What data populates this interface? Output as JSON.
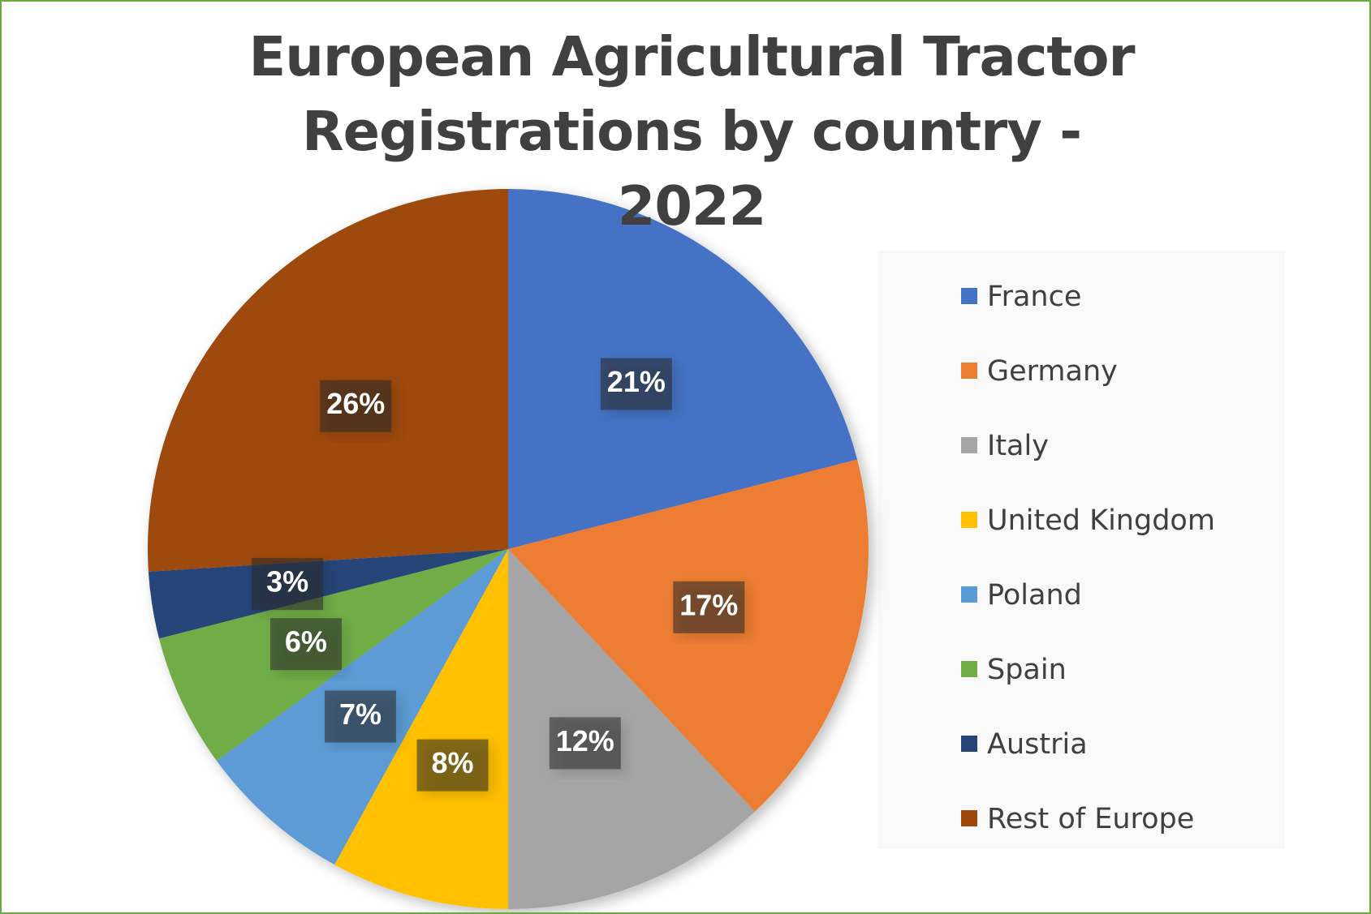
{
  "chart_data": {
    "type": "pie",
    "title": "European Agricultural Tractor Registrations by country - 2022",
    "categories": [
      "France",
      "Germany",
      "Italy",
      "United Kingdom",
      "Poland",
      "Spain",
      "Austria",
      "Rest of Europe"
    ],
    "values": [
      21,
      17,
      12,
      8,
      7,
      6,
      3,
      26
    ],
    "value_labels": [
      "21%",
      "17%",
      "12%",
      "8%",
      "7%",
      "6%",
      "3%",
      "26%"
    ],
    "colors": [
      "#4472c4",
      "#ed7d31",
      "#a5a5a5",
      "#ffc000",
      "#5b9bd5",
      "#70ad47",
      "#264478",
      "#9e480e"
    ],
    "legend": "right"
  }
}
